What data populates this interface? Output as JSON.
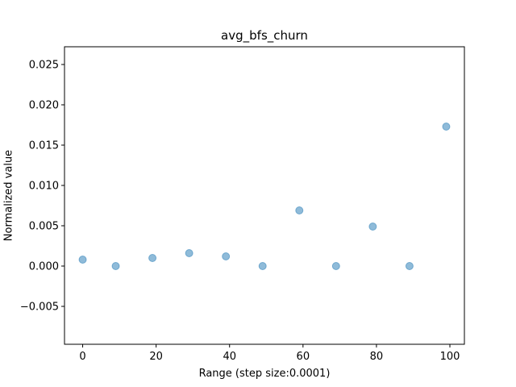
{
  "chart_data": {
    "type": "scatter",
    "title": "avg_bfs_churn",
    "xlabel": "Range (step size:0.0001)",
    "ylabel": "Normalized value",
    "xlim": [
      -4.95,
      103.95
    ],
    "ylim": [
      -0.0097,
      0.0272
    ],
    "xticks": [
      0,
      20,
      40,
      60,
      80,
      100
    ],
    "yticks": [
      -0.005,
      0.0,
      0.005,
      0.01,
      0.015,
      0.02,
      0.025
    ],
    "ytick_labels": [
      "−0.005",
      "0.000",
      "0.005",
      "0.010",
      "0.015",
      "0.020",
      "0.025"
    ],
    "grid": false,
    "marker_color": "#1f77b4",
    "points": [
      {
        "x": 0,
        "y": 0.0008
      },
      {
        "x": 9,
        "y": 0.0
      },
      {
        "x": 19,
        "y": 0.001
      },
      {
        "x": 29,
        "y": 0.0016
      },
      {
        "x": 39,
        "y": 0.0012
      },
      {
        "x": 49,
        "y": 0.0
      },
      {
        "x": 59,
        "y": 0.0069
      },
      {
        "x": 69,
        "y": 0.0
      },
      {
        "x": 79,
        "y": 0.0049
      },
      {
        "x": 89,
        "y": 0.0
      },
      {
        "x": 99,
        "y": 0.0173
      }
    ]
  }
}
